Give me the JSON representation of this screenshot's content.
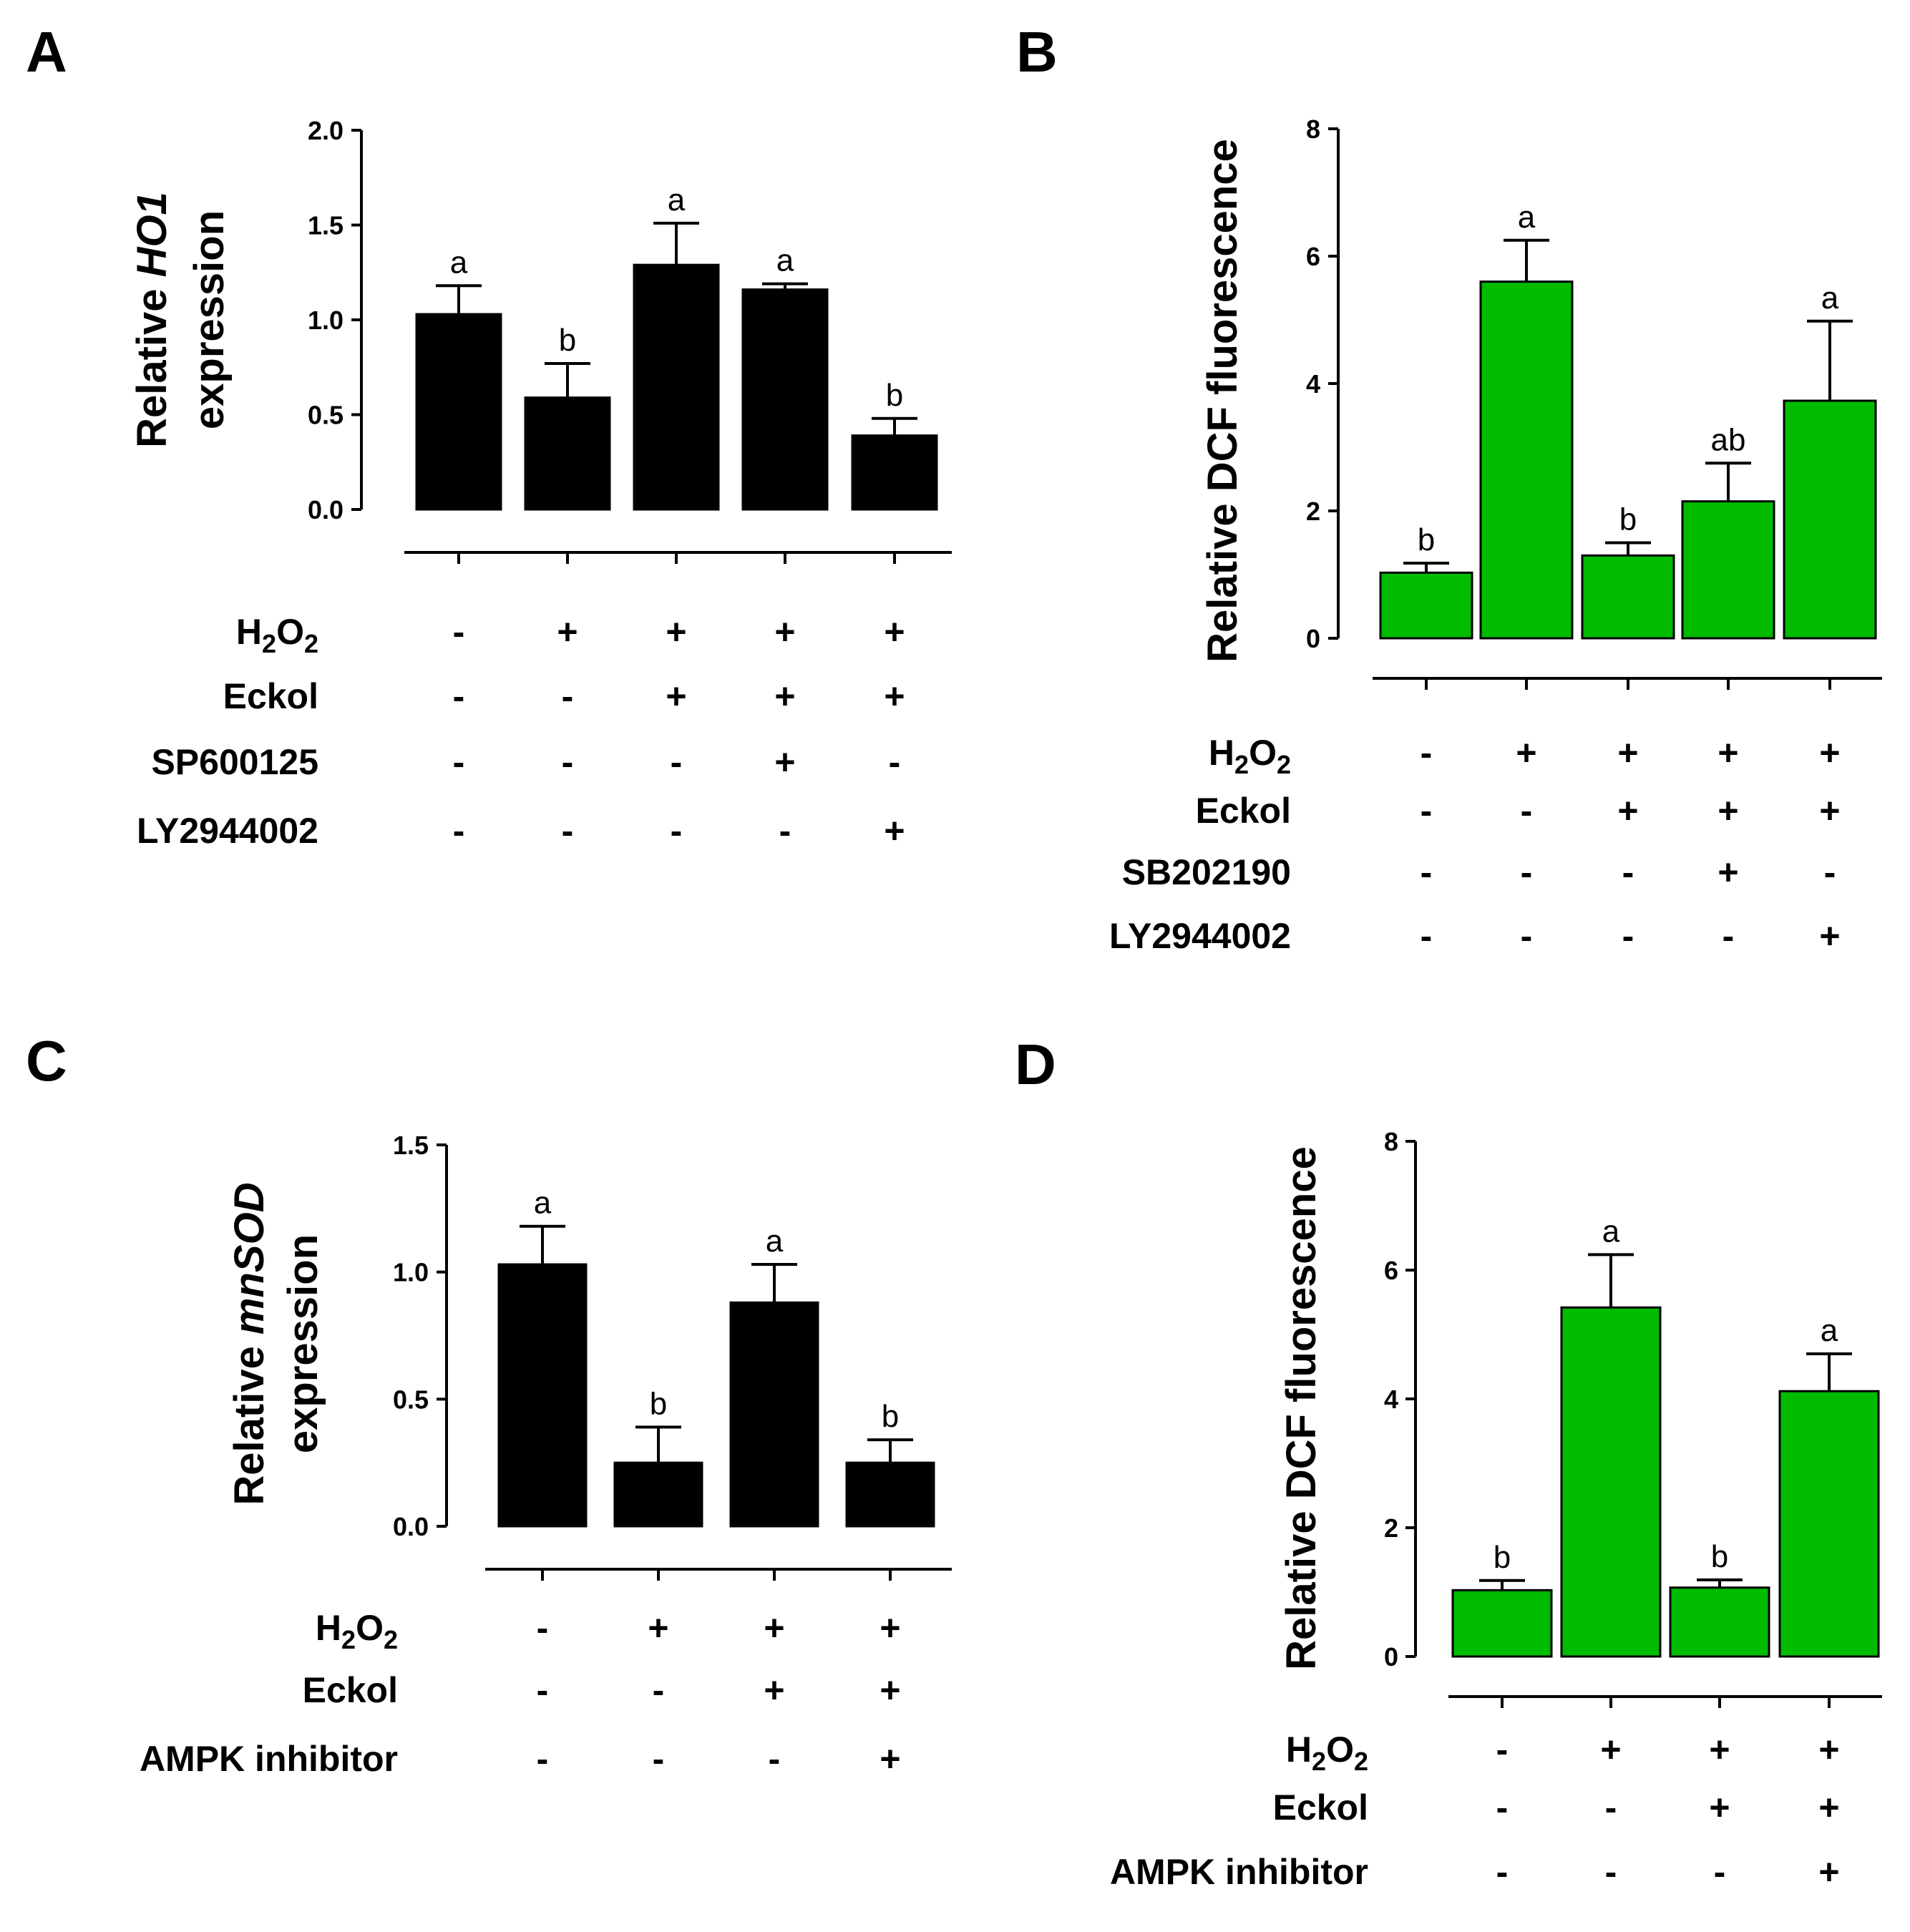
{
  "colors": {
    "black_bar": "#000000",
    "green_bar": "#00bb00",
    "axis": "#000000"
  },
  "chart_data": [
    {
      "panel": "A",
      "type": "bar",
      "ylabel_parts": [
        {
          "text": "Relative ",
          "italic": false
        },
        {
          "text": "HO1",
          "italic": true
        }
      ],
      "ylabel_line2": "expression",
      "ylim": [
        0,
        2.0
      ],
      "yticks": [
        "0.0",
        "0.5",
        "1.0",
        "1.5",
        "2.0"
      ],
      "values": [
        1.03,
        0.59,
        1.29,
        1.16,
        0.39
      ],
      "errors": [
        0.15,
        0.18,
        0.22,
        0.03,
        0.09
      ],
      "significance": [
        "a",
        "b",
        "a",
        "a",
        "b"
      ],
      "bar_color": "#000000",
      "conditions": [
        {
          "label": "H2O2",
          "signs": [
            "-",
            "+",
            "+",
            "+",
            "+"
          ]
        },
        {
          "label": "Eckol",
          "signs": [
            "-",
            "-",
            "+",
            "+",
            "+"
          ]
        },
        {
          "label": "SP600125",
          "signs": [
            "-",
            "-",
            "-",
            "+",
            "-"
          ]
        },
        {
          "label": "LY2944002",
          "signs": [
            "-",
            "-",
            "-",
            "-",
            "+"
          ]
        }
      ]
    },
    {
      "panel": "B",
      "type": "bar",
      "ylabel": "Relative DCF fluorescence",
      "ylim": [
        0,
        8
      ],
      "yticks": [
        "0",
        "2",
        "4",
        "6",
        "8"
      ],
      "values": [
        1.03,
        5.6,
        1.3,
        2.15,
        3.73
      ],
      "errors": [
        0.15,
        0.65,
        0.2,
        0.6,
        1.25
      ],
      "significance": [
        "b",
        "a",
        "b",
        "ab",
        "a"
      ],
      "bar_color": "#00bb00",
      "conditions": [
        {
          "label": "H2O2",
          "signs": [
            "-",
            "+",
            "+",
            "+",
            "+"
          ]
        },
        {
          "label": "Eckol",
          "signs": [
            "-",
            "-",
            "+",
            "+",
            "+"
          ]
        },
        {
          "label": "SB202190",
          "signs": [
            "-",
            "-",
            "-",
            "+",
            "-"
          ]
        },
        {
          "label": "LY2944002",
          "signs": [
            "-",
            "-",
            "-",
            "-",
            "+"
          ]
        }
      ]
    },
    {
      "panel": "C",
      "type": "bar",
      "ylabel_parts": [
        {
          "text": "Relative ",
          "italic": false
        },
        {
          "text": "mnSOD",
          "italic": true
        }
      ],
      "ylabel_line2": "expression",
      "ylim": [
        0,
        1.5
      ],
      "yticks": [
        "0.0",
        "0.5",
        "1.0",
        "1.5"
      ],
      "values": [
        1.03,
        0.25,
        0.88,
        0.25
      ],
      "errors": [
        0.15,
        0.14,
        0.15,
        0.09
      ],
      "significance": [
        "a",
        "b",
        "a",
        "b"
      ],
      "bar_color": "#000000",
      "conditions": [
        {
          "label": "H2O2",
          "signs": [
            "-",
            "+",
            "+",
            "+"
          ]
        },
        {
          "label": "Eckol",
          "signs": [
            "-",
            "-",
            "+",
            "+"
          ]
        },
        {
          "label": "AMPK inhibitor",
          "signs": [
            "-",
            "-",
            "-",
            "+"
          ]
        }
      ]
    },
    {
      "panel": "D",
      "type": "bar",
      "ylabel": "Relative DCF fluorescence",
      "ylim": [
        0,
        8
      ],
      "yticks": [
        "0",
        "2",
        "4",
        "6",
        "8"
      ],
      "values": [
        1.03,
        5.42,
        1.07,
        4.12
      ],
      "errors": [
        0.15,
        0.82,
        0.12,
        0.58
      ],
      "significance": [
        "b",
        "a",
        "b",
        "a"
      ],
      "bar_color": "#00bb00",
      "conditions": [
        {
          "label": "H2O2",
          "signs": [
            "-",
            "+",
            "+",
            "+"
          ]
        },
        {
          "label": "Eckol",
          "signs": [
            "-",
            "-",
            "+",
            "+"
          ]
        },
        {
          "label": "AMPK inhibitor",
          "signs": [
            "-",
            "-",
            "-",
            "+"
          ]
        }
      ]
    }
  ]
}
